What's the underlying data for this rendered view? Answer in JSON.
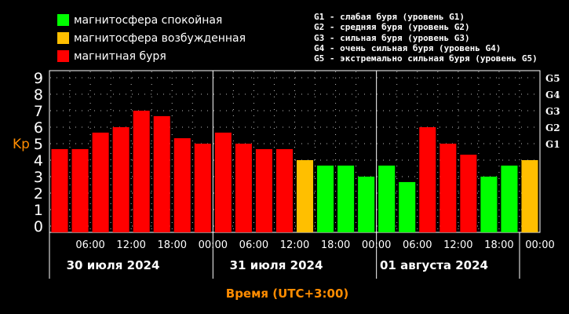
{
  "legend": [
    {
      "label": "магнитосфера спокойная",
      "color": "#00ff00"
    },
    {
      "label": "магнитосфера возбужденная",
      "color": "#ffbf00"
    },
    {
      "label": "магнитная буря",
      "color": "#ff0000"
    }
  ],
  "g_scale": [
    "G1 - слабая буря (уровень G1)",
    "G2 - средняя буря (уровень G2)",
    "G3 - сильная буря (уровень G3)",
    "G4 - очень сильная буря (уровень G4)",
    "G5 - экстремально сильная буря (уровень G5)"
  ],
  "colors": {
    "quiet": "#00ff00",
    "active": "#ffbf00",
    "storm": "#ff0000",
    "axis_title": "#ff8c00"
  },
  "chart_data": {
    "type": "bar",
    "ylabel": "Kp",
    "xlabel": "Время (UTC+3:00)",
    "ylim": [
      0,
      9
    ],
    "yticks": [
      "0",
      "1",
      "2",
      "3",
      "4",
      "5",
      "6",
      "7",
      "8",
      "9"
    ],
    "right_ticks": [
      {
        "label": "G1",
        "value": 5
      },
      {
        "label": "G2",
        "value": 6
      },
      {
        "label": "G3",
        "value": 7
      },
      {
        "label": "G4",
        "value": 8
      },
      {
        "label": "G5",
        "value": 9
      }
    ],
    "xtick_labels": [
      "06:00",
      "12:00",
      "18:00",
      "00:00",
      "06:00",
      "12:00",
      "18:00",
      "00:00",
      "06:00",
      "12:00",
      "18:00",
      "00:00"
    ],
    "day_labels": [
      "30 июля 2024",
      "31 июля 2024",
      "01 августа 2024"
    ],
    "grid": true,
    "values": [
      4.67,
      4.67,
      5.67,
      6,
      7,
      6.67,
      5.33,
      5,
      5.67,
      5,
      4.67,
      4.67,
      4,
      3.67,
      3.67,
      3,
      3.67,
      2.67,
      6,
      5,
      4.33,
      3,
      3.67,
      4
    ],
    "levels": [
      "storm",
      "storm",
      "storm",
      "storm",
      "storm",
      "storm",
      "storm",
      "storm",
      "storm",
      "storm",
      "storm",
      "storm",
      "active",
      "quiet",
      "quiet",
      "quiet",
      "quiet",
      "quiet",
      "storm",
      "storm",
      "storm",
      "quiet",
      "quiet",
      "active"
    ]
  }
}
